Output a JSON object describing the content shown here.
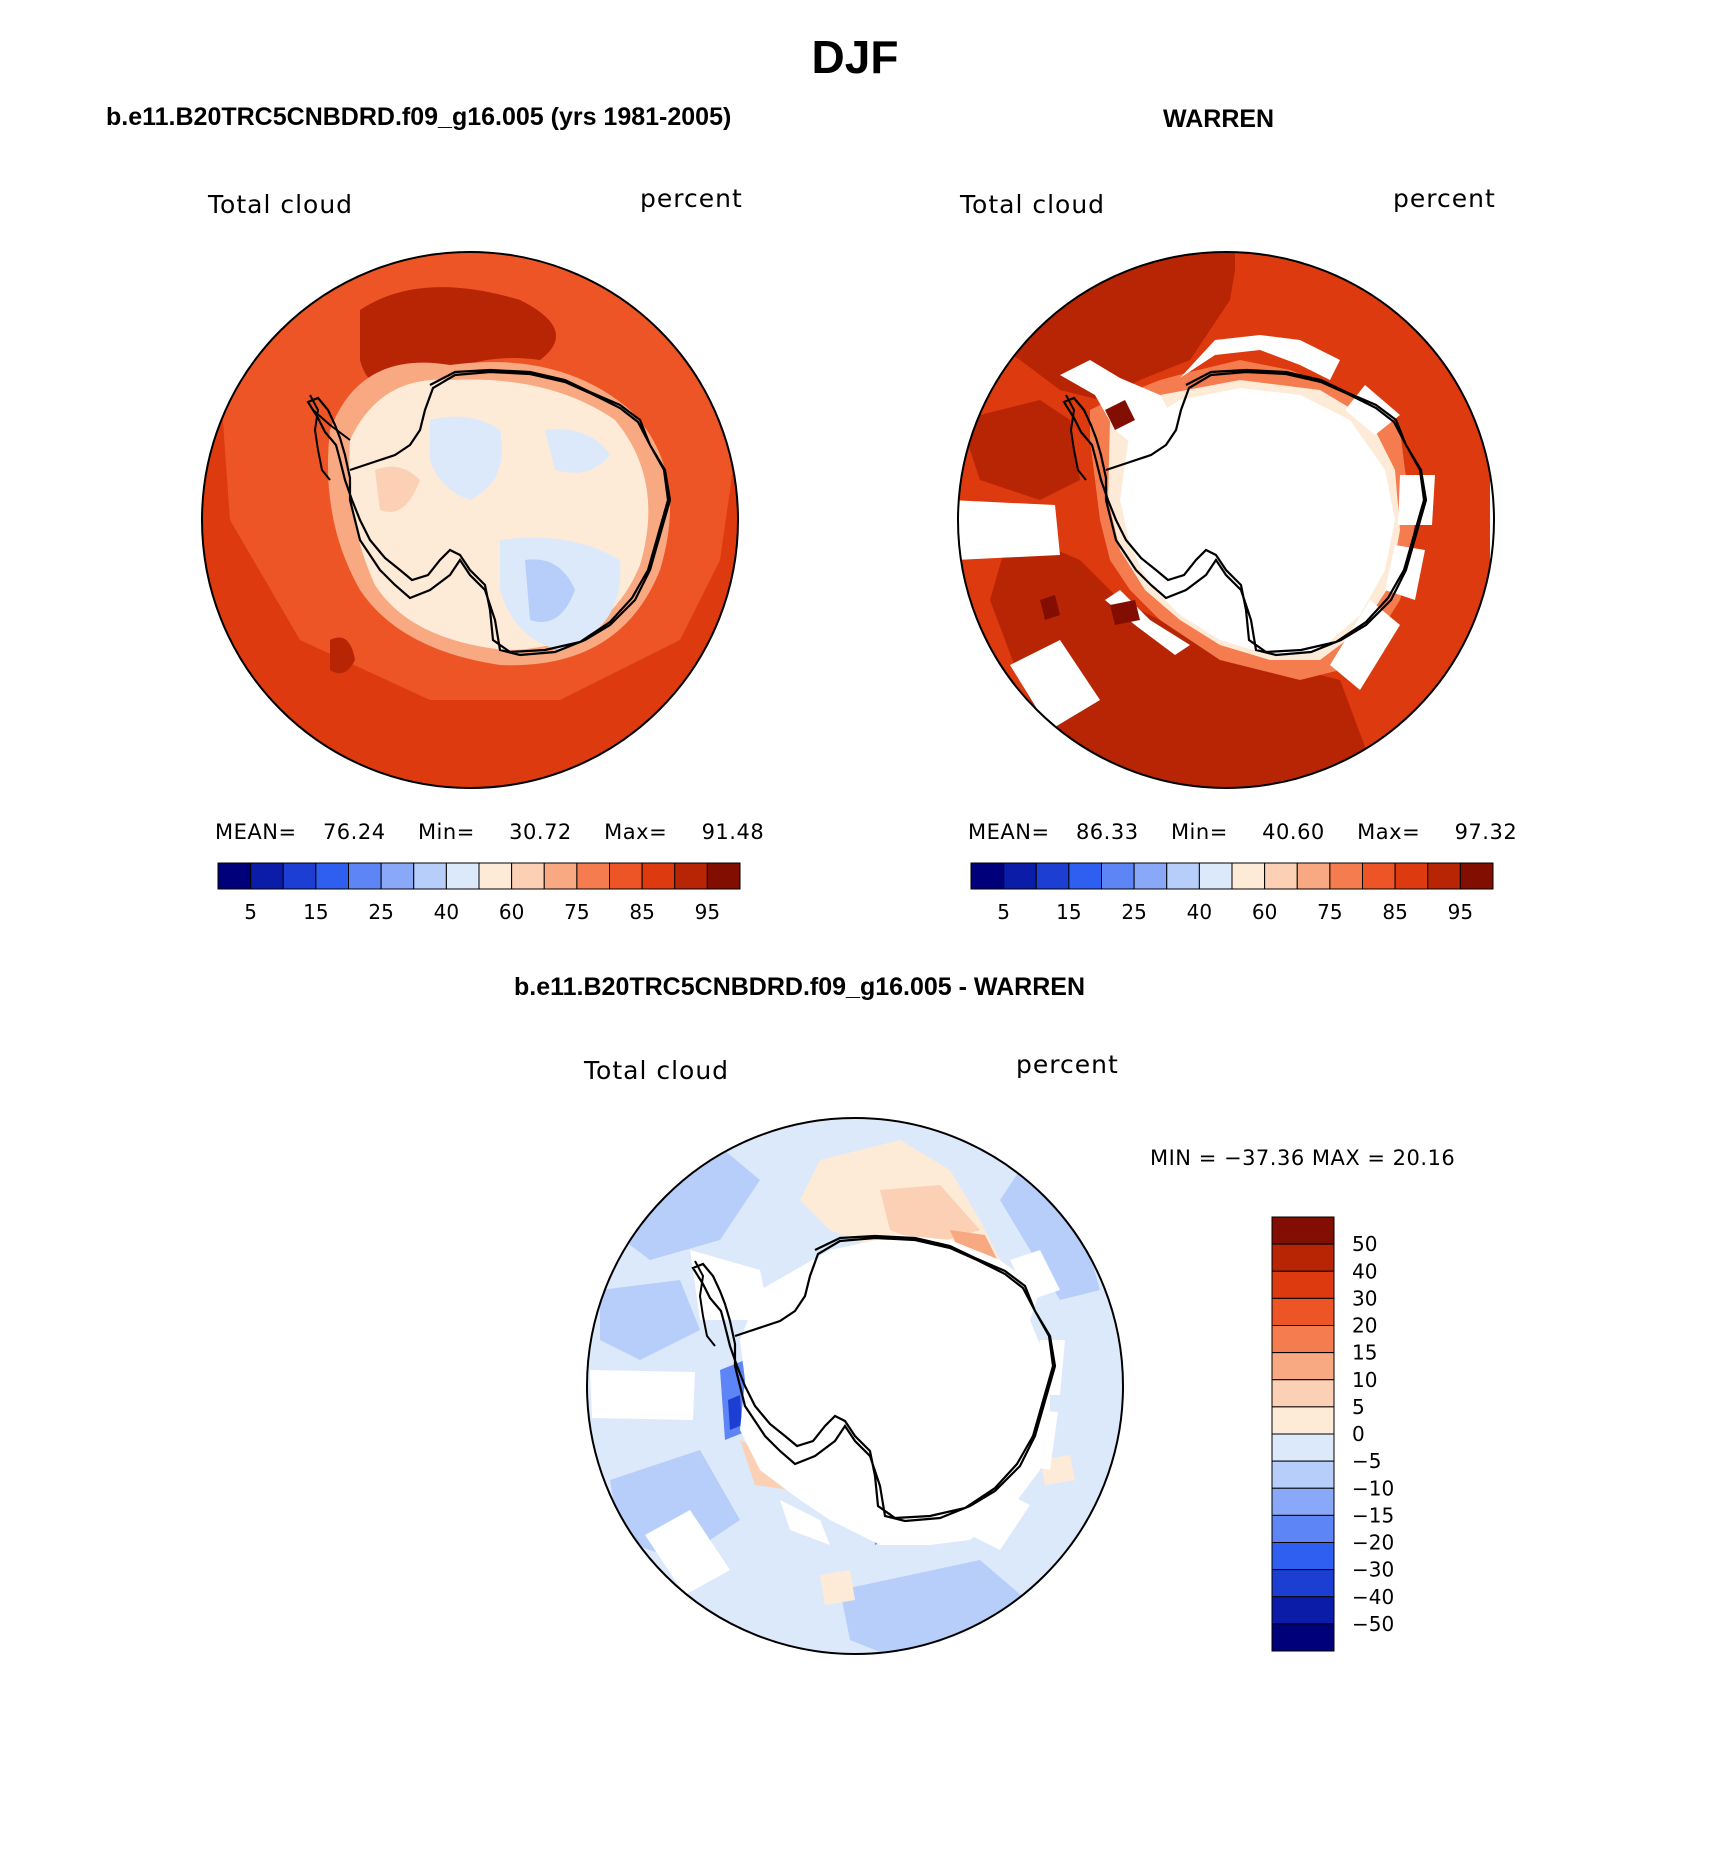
{
  "figure": {
    "title": "DJF",
    "panel1": {
      "title": "b.e11.B20TRC5CNBDRD.f09_g16.005 (yrs 1981-2005)",
      "left_label": "Total cloud",
      "right_label": "percent",
      "mean_label": "MEAN=",
      "mean_value": "76.24",
      "min_label": "Min=",
      "min_value": "30.72",
      "max_label": "Max=",
      "max_value": "91.48"
    },
    "panel2": {
      "title": "WARREN",
      "left_label": "Total cloud",
      "right_label": "percent",
      "mean_label": "MEAN=",
      "mean_value": "86.33",
      "min_label": "Min=",
      "min_value": "40.60",
      "max_label": "Max=",
      "max_value": "97.32"
    },
    "panel3": {
      "title": "b.e11.B20TRC5CNBDRD.f09_g16.005 - WARREN",
      "left_label": "Total cloud",
      "right_label": "percent",
      "minmax_text": "MIN = −37.36 MAX =  20.16"
    },
    "colorbar_h": {
      "colors": [
        "#00007a",
        "#0a1ca8",
        "#1c3ed2",
        "#2e5ff0",
        "#5d85f5",
        "#89a9f8",
        "#b7cdfa",
        "#dce9fb",
        "#fdebd7",
        "#fcd0b4",
        "#f8a981",
        "#f47c4e",
        "#ee5526",
        "#dd3a0f",
        "#b82505",
        "#820e02"
      ],
      "tick_labels": [
        "5",
        "15",
        "25",
        "40",
        "60",
        "75",
        "85",
        "95"
      ]
    },
    "colorbar_v": {
      "colors_top_to_bottom": [
        "#820e02",
        "#b82505",
        "#dd3a0f",
        "#ee5526",
        "#f47c4e",
        "#f8a981",
        "#fcd0b4",
        "#fdebd7",
        "#dce9fb",
        "#b7cdfa",
        "#89a9f8",
        "#5d85f5",
        "#2e5ff0",
        "#1c3ed2",
        "#0a1ca8",
        "#00007a"
      ],
      "tick_labels": [
        "50",
        "40",
        "30",
        "20",
        "15",
        "10",
        "5",
        "0",
        "−5",
        "−10",
        "−15",
        "−20",
        "−30",
        "−40",
        "−50"
      ]
    }
  }
}
